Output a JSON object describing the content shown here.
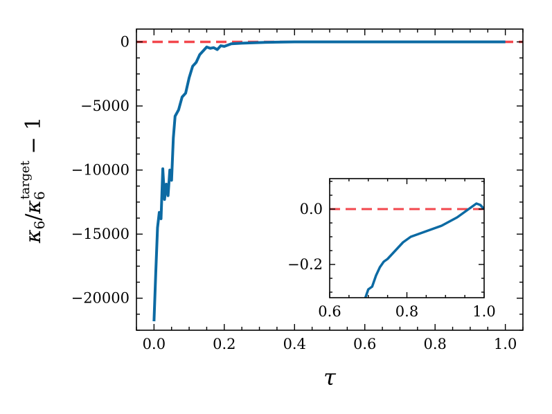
{
  "colors": {
    "series": "#0c6aa3",
    "reference": "#f2474d",
    "axes": "#000000",
    "background": "#ffffff"
  },
  "chart_data": [
    {
      "type": "line",
      "panel": "main",
      "xlabel": "τ",
      "ylabel": "κ6/κ6target − 1",
      "ylabel_parts": {
        "base": "κ",
        "sub": "6",
        "sup": "target",
        "tail": " − 1"
      },
      "xlim": [
        -0.05,
        1.05
      ],
      "ylim": [
        -22500,
        1000
      ],
      "xticks": [
        0.0,
        0.2,
        0.4,
        0.6,
        0.8,
        1.0
      ],
      "xtick_labels": [
        "0.0",
        "0.2",
        "0.4",
        "0.6",
        "0.8",
        "1.0"
      ],
      "yticks": [
        0,
        -5000,
        -10000,
        -15000,
        -20000
      ],
      "ytick_labels": [
        "0",
        "−5000",
        "−10000",
        "−15000",
        "−20000"
      ],
      "grid": false,
      "reference_line": {
        "y": 0,
        "style": "dashed"
      },
      "series": [
        {
          "x": [
            0.0,
            0.005,
            0.01,
            0.015,
            0.02,
            0.025,
            0.03,
            0.035,
            0.04,
            0.045,
            0.05,
            0.055,
            0.06,
            0.07,
            0.08,
            0.09,
            0.1,
            0.11,
            0.12,
            0.13,
            0.14,
            0.15,
            0.16,
            0.17,
            0.18,
            0.19,
            0.2,
            0.22,
            0.25,
            0.3,
            0.35,
            0.4,
            0.5,
            0.6,
            0.7,
            0.8,
            0.9,
            1.0
          ],
          "y": [
            -21800,
            -18000,
            -14500,
            -13300,
            -13800,
            -9900,
            -12300,
            -11100,
            -12000,
            -10000,
            -10800,
            -7500,
            -5800,
            -5300,
            -4300,
            -4000,
            -2800,
            -1900,
            -1600,
            -1000,
            -700,
            -400,
            -500,
            -450,
            -600,
            -300,
            -350,
            -150,
            -100,
            -50,
            -20,
            0,
            0,
            0,
            0,
            0,
            0,
            0
          ]
        }
      ]
    },
    {
      "type": "line",
      "panel": "inset",
      "xlim": [
        0.6,
        1.0
      ],
      "ylim": [
        -0.32,
        0.11
      ],
      "xticks": [
        0.6,
        0.8,
        1.0
      ],
      "xtick_labels": [
        "0.6",
        "0.8",
        "1.0"
      ],
      "yticks": [
        0.0,
        -0.2
      ],
      "ytick_labels": [
        "0.0",
        "−0.2"
      ],
      "grid": false,
      "reference_line": {
        "y": 0,
        "style": "dashed"
      },
      "series": [
        {
          "x": [
            0.69,
            0.7,
            0.71,
            0.72,
            0.73,
            0.74,
            0.75,
            0.77,
            0.79,
            0.81,
            0.83,
            0.85,
            0.87,
            0.89,
            0.91,
            0.93,
            0.95,
            0.96,
            0.97,
            0.98,
            0.99,
            1.0
          ],
          "y": [
            -0.33,
            -0.29,
            -0.28,
            -0.24,
            -0.21,
            -0.19,
            -0.18,
            -0.15,
            -0.12,
            -0.1,
            -0.09,
            -0.08,
            -0.07,
            -0.06,
            -0.045,
            -0.03,
            -0.01,
            0.0,
            0.01,
            0.02,
            0.015,
            0.0
          ]
        }
      ]
    }
  ]
}
